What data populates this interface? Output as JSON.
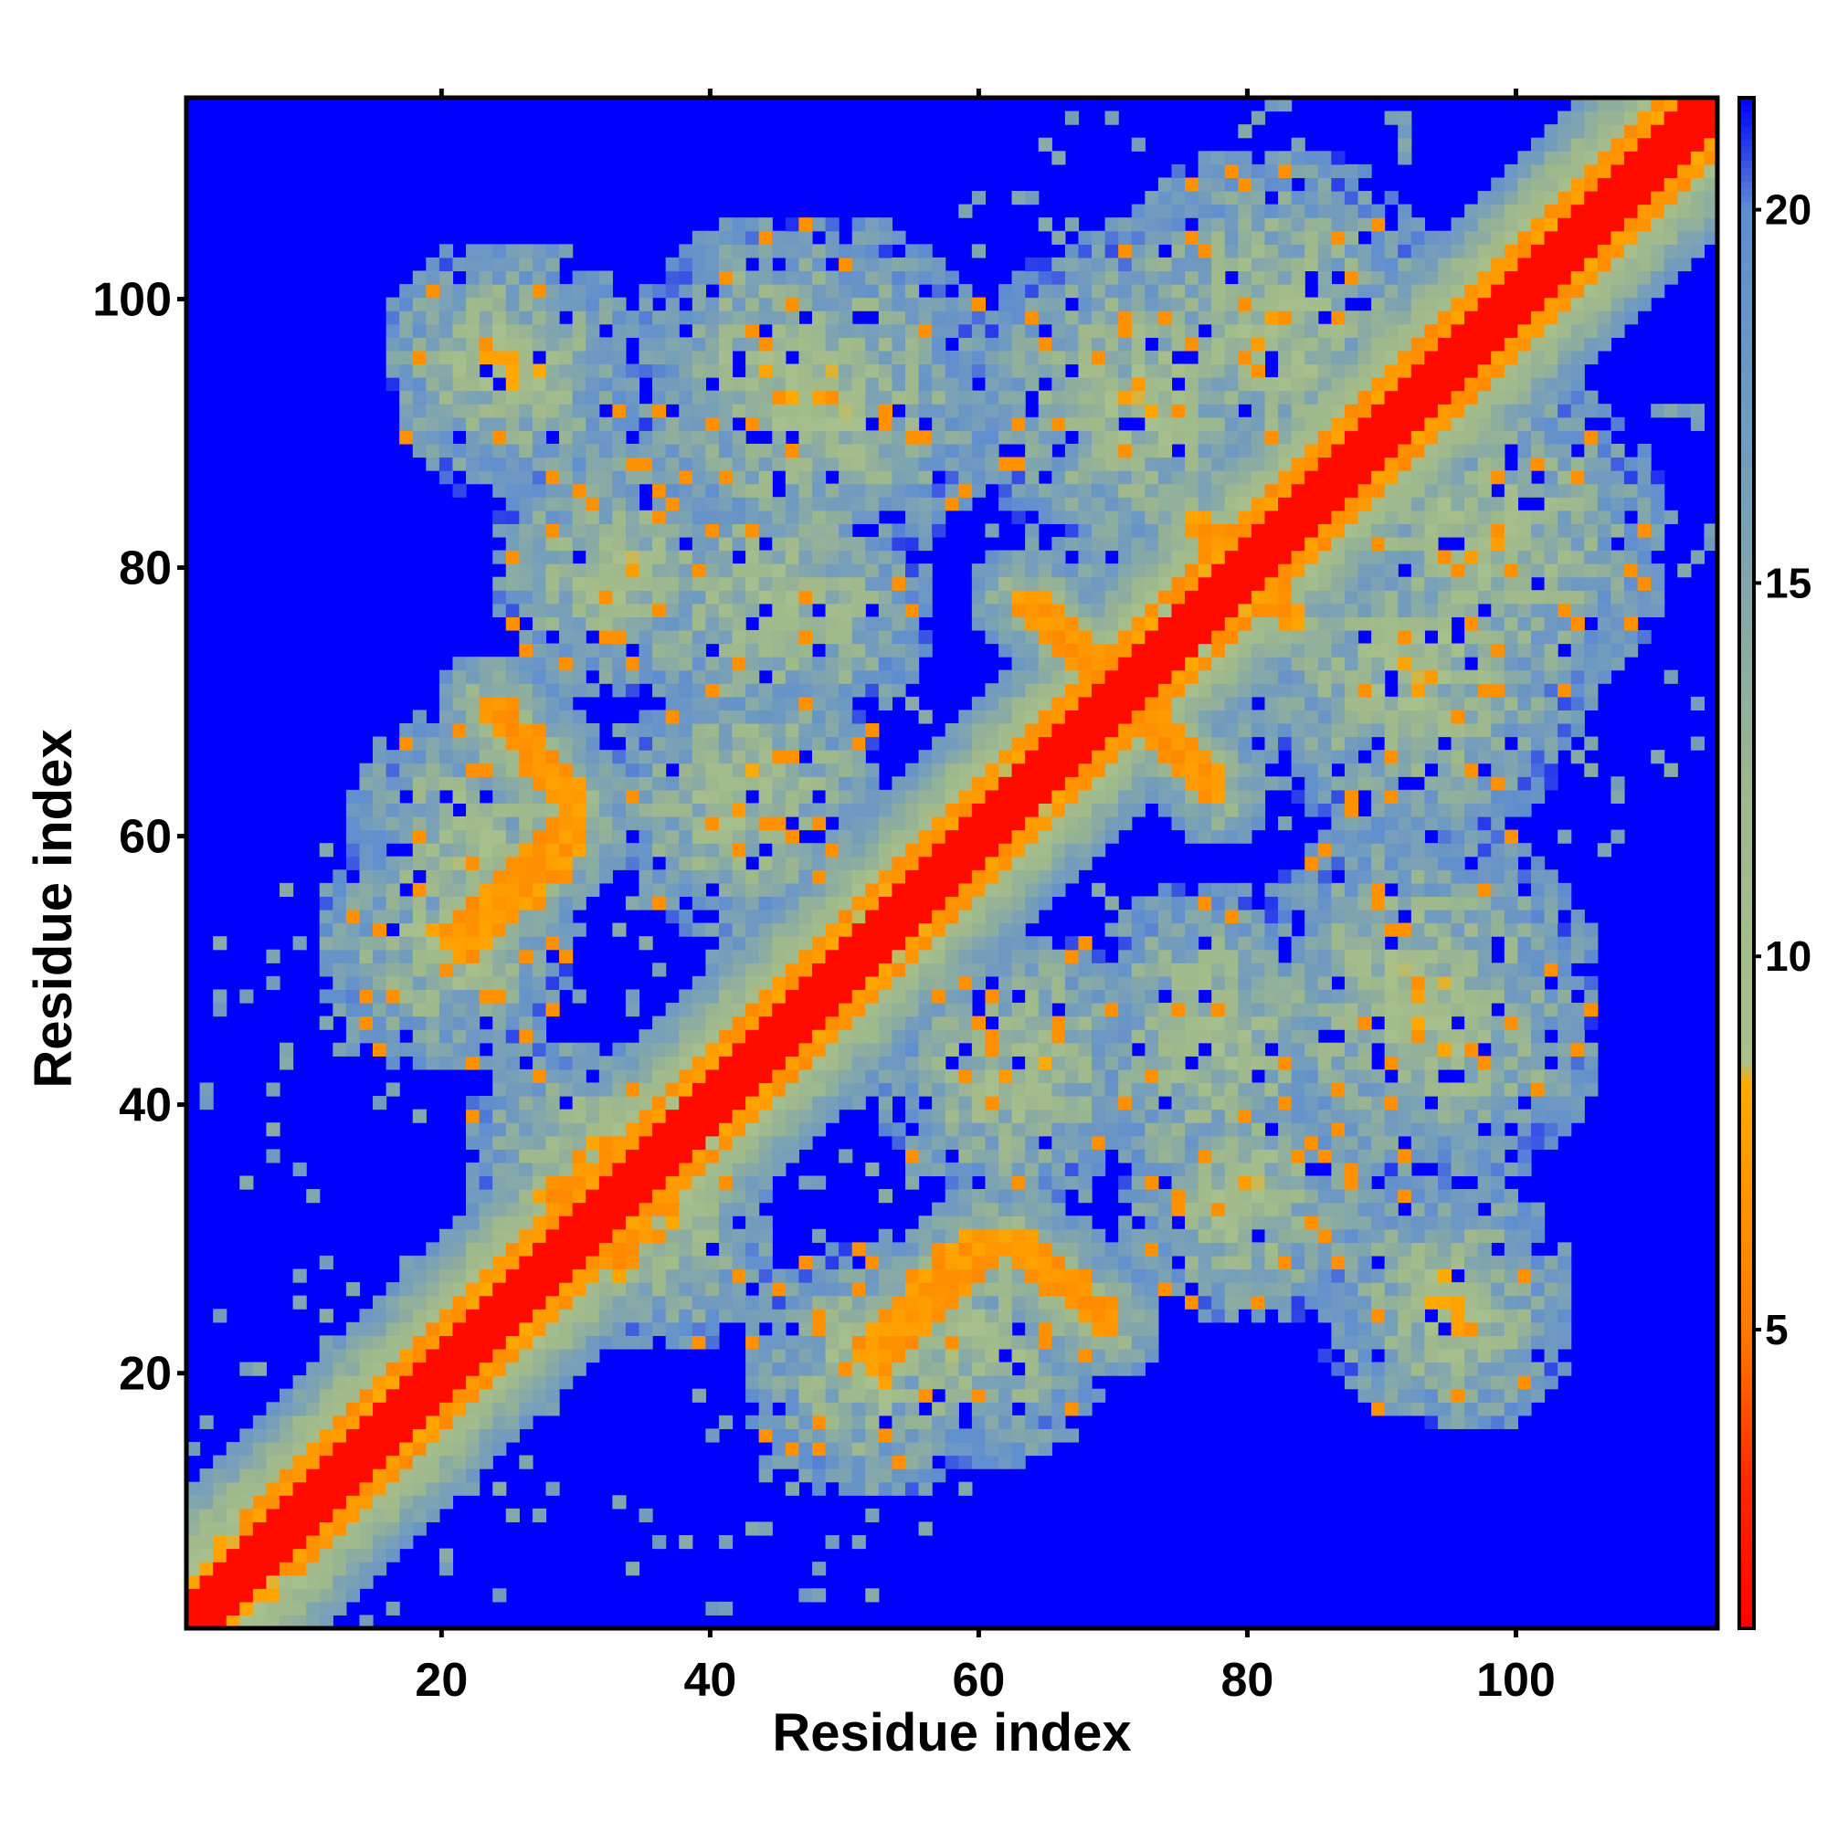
{
  "chart_data": {
    "type": "heatmap",
    "title": "",
    "xlabel": "Residue index",
    "ylabel": "Residue index",
    "n_residues": 115,
    "xlim": [
      1,
      115
    ],
    "ylim": [
      1,
      115
    ],
    "x_ticks": [
      20,
      40,
      60,
      80,
      100
    ],
    "y_ticks": [
      20,
      40,
      60,
      80,
      100
    ],
    "colorbar": {
      "range": [
        1,
        21.5
      ],
      "ticks": [
        5,
        10,
        15,
        20
      ],
      "colors": {
        "very_close": "#ff0000",
        "close": "#ff9900",
        "medium": "#a8c08c",
        "far": "#6f97c5",
        "background": "#0000ff"
      },
      "stops": [
        {
          "value": 1,
          "color": "#ff0000"
        },
        {
          "value": 3,
          "color": "#ff2a00"
        },
        {
          "value": 5,
          "color": "#ff7a00"
        },
        {
          "value": 8.3,
          "color": "#ffaa00"
        },
        {
          "value": 8.6,
          "color": "#a8c08c"
        },
        {
          "value": 12,
          "color": "#9fb88c"
        },
        {
          "value": 16,
          "color": "#78a0b8"
        },
        {
          "value": 20,
          "color": "#5f8ed0"
        },
        {
          "value": 21.5,
          "color": "#0000ff"
        }
      ]
    },
    "features": {
      "main_diagonal": {
        "from": 1,
        "to": 115,
        "distance": 2,
        "band_halfwidth": 6
      },
      "secondary_diagonals": [
        {
          "offset": 4,
          "from": 5,
          "to": 115,
          "distance": 6
        }
      ],
      "contact_segments": [
        {
          "start": [
            24,
            70
          ],
          "end": [
            30,
            63
          ],
          "distance": 6
        },
        {
          "start": [
            30,
            63
          ],
          "end": [
            20,
            52
          ],
          "distance": 6
        },
        {
          "start": [
            64,
            78
          ],
          "end": [
            70,
            72
          ],
          "distance": 6
        },
        {
          "start": [
            72,
            69
          ],
          "end": [
            78,
            63
          ],
          "distance": 6
        },
        {
          "start": [
            51,
            21
          ],
          "end": [
            60,
            30
          ],
          "distance": 6
        },
        {
          "start": [
            61,
            30
          ],
          "end": [
            70,
            23
          ],
          "distance": 6
        },
        {
          "start": [
            33,
            27
          ],
          "end": [
            36,
            34
          ],
          "distance": 6
        },
        {
          "start": [
            76,
            84
          ],
          "end": [
            83,
            77
          ],
          "distance": 6
        }
      ],
      "contact_clusters": [
        {
          "center": [
            24,
            96
          ],
          "radius": 9
        },
        {
          "center": [
            48,
            93
          ],
          "radius": 14
        },
        {
          "center": [
            82,
            98
          ],
          "radius": 14
        },
        {
          "center": [
            33,
            80
          ],
          "radius": 10
        },
        {
          "center": [
            42,
            62
          ],
          "radius": 10
        },
        {
          "center": [
            78,
            45
          ],
          "radius": 12
        },
        {
          "center": [
            95,
            45
          ],
          "radius": 12
        },
        {
          "center": [
            95,
            25
          ],
          "radius": 10
        },
        {
          "center": [
            60,
            22
          ],
          "radius": 10
        },
        {
          "center": [
            36,
            30
          ],
          "radius": 9
        },
        {
          "center": [
            93,
            72
          ],
          "radius": 13
        },
        {
          "center": [
            64,
            44
          ],
          "radius": 9
        },
        {
          "center": [
            20,
            52
          ],
          "radius": 10
        }
      ]
    }
  }
}
